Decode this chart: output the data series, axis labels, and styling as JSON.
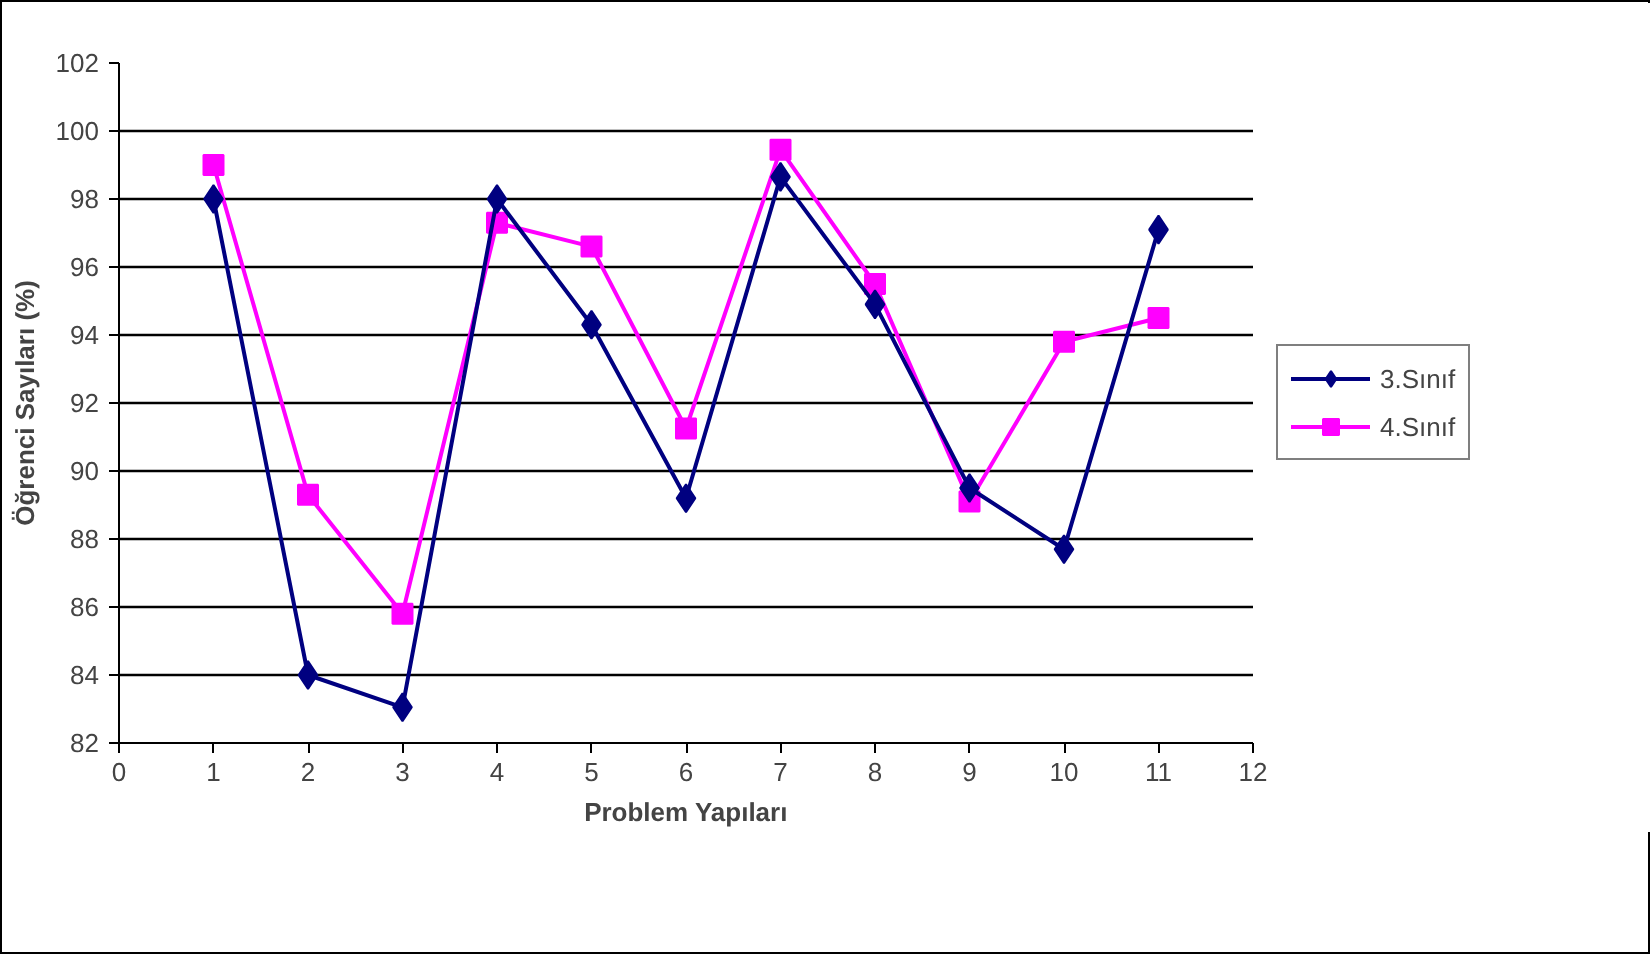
{
  "chart_data": {
    "type": "line",
    "xlabel": "Problem Yapıları",
    "ylabel": "Öğrenci Sayıları (%)",
    "x": [
      1,
      2,
      3,
      4,
      5,
      6,
      7,
      8,
      9,
      10,
      11
    ],
    "series": [
      {
        "name": "3.Sınıf",
        "color": "#000080",
        "marker": "diamond",
        "values": [
          98.0,
          84.0,
          83.05,
          98.0,
          94.3,
          89.2,
          98.65,
          94.9,
          89.5,
          87.7,
          97.1
        ]
      },
      {
        "name": "4.Sınıf",
        "color": "#ff00ff",
        "marker": "square",
        "values": [
          99.0,
          89.3,
          85.8,
          97.3,
          96.6,
          91.25,
          99.45,
          95.5,
          89.1,
          93.8,
          94.5
        ]
      }
    ],
    "xlim": [
      0,
      12
    ],
    "xticks": [
      0,
      1,
      2,
      3,
      4,
      5,
      6,
      7,
      8,
      9,
      10,
      11,
      12
    ],
    "ylim": [
      82,
      102
    ],
    "yticks": [
      82,
      84,
      86,
      88,
      90,
      92,
      94,
      96,
      98,
      100,
      102
    ],
    "grid": "y",
    "legend": "right",
    "line_style": "solid"
  }
}
